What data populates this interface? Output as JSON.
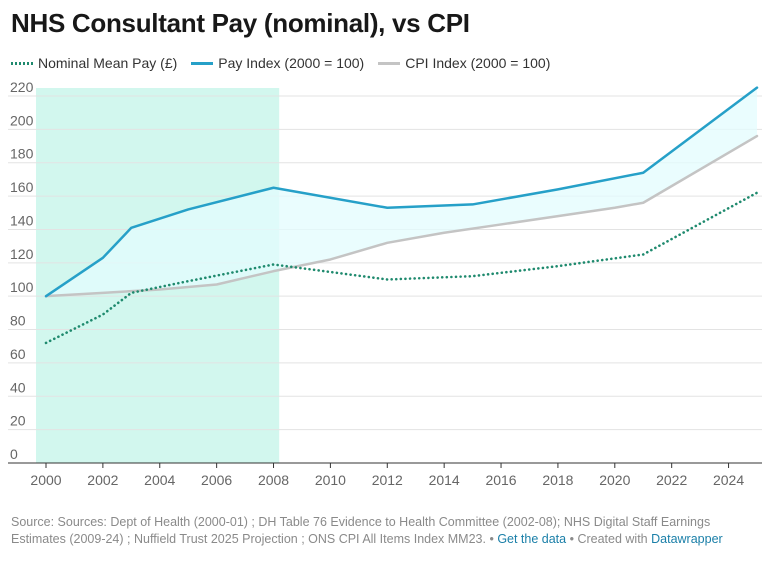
{
  "title": "NHS Consultant Pay (nominal), vs CPI",
  "legend": [
    {
      "label": "Nominal Mean Pay (£)",
      "color": "#1f8a6e",
      "style": "dotted"
    },
    {
      "label": "Pay Index (2000 = 100)",
      "color": "#26a0c8",
      "style": "solid"
    },
    {
      "label": "CPI Index (2000 = 100)",
      "color": "#c4c4c4",
      "style": "solid"
    }
  ],
  "footer": {
    "source_text": "Source: Sources: Dept of Health (2000-01) ; DH Table 76 Evidence to Health Committee (2002-08); NHS Digital Staff Earnings Estimates (2009-24) ; Nuffield Trust 2025 Projection ; ONS CPI All Items Index MM23.",
    "separator": " • ",
    "get_data_label": "Get the data",
    "created_with": "Created with",
    "datawrapper_label": "Datawrapper"
  },
  "chart_data": {
    "type": "line",
    "title": "NHS Consultant Pay (nominal), vs CPI",
    "xlabel": "",
    "ylabel": "",
    "xlim": [
      2000,
      2025
    ],
    "ylim": [
      0,
      220
    ],
    "xticks": [
      2000,
      2002,
      2004,
      2006,
      2008,
      2010,
      2012,
      2014,
      2016,
      2018,
      2020,
      2022,
      2024
    ],
    "yticks": [
      0,
      20,
      40,
      60,
      80,
      100,
      120,
      140,
      160,
      180,
      200,
      220
    ],
    "grid": true,
    "legend_position": "top-left",
    "highlight_range": {
      "x": [
        2000,
        2008.2
      ],
      "color": "#d2f7ee"
    },
    "gap_fill_color": "#e3fcfd",
    "series": [
      {
        "name": "Nominal Mean Pay (£)",
        "color": "#1f8a6e",
        "style": "dotted",
        "x": [
          2000,
          2002,
          2003,
          2005,
          2008,
          2012,
          2015,
          2018,
          2021,
          2025
        ],
        "y": [
          72,
          89,
          102,
          109,
          119,
          110,
          112,
          118,
          125,
          162
        ]
      },
      {
        "name": "Pay Index (2000 = 100)",
        "color": "#26a0c8",
        "style": "solid",
        "x": [
          2000,
          2002,
          2003,
          2005,
          2008,
          2012,
          2015,
          2018,
          2021,
          2025
        ],
        "y": [
          100,
          123,
          141,
          152,
          165,
          153,
          155,
          164,
          174,
          225
        ]
      },
      {
        "name": "CPI Index (2000 = 100)",
        "color": "#c4c4c4",
        "style": "solid",
        "x": [
          2000,
          2002,
          2004,
          2006,
          2008,
          2010,
          2012,
          2014,
          2016,
          2018,
          2020,
          2021,
          2025
        ],
        "y": [
          100,
          102,
          104,
          107,
          115,
          122,
          132,
          138,
          143,
          148,
          153,
          156,
          196
        ]
      }
    ]
  }
}
